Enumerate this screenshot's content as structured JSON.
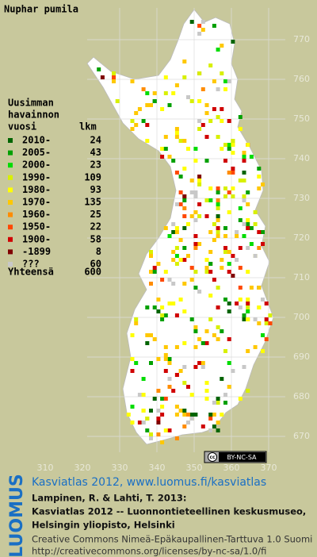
{
  "title": "Nuphar pumila",
  "legend": {
    "heading": [
      "Uusimman",
      "havainnon",
      "vuosi"
    ],
    "count_heading": "lkm",
    "items": [
      {
        "label": "2010-",
        "count": "24",
        "color": "#006400"
      },
      {
        "label": "2005-",
        "count": "43",
        "color": "#00a000"
      },
      {
        "label": "2000-",
        "count": "23",
        "color": "#00dc00"
      },
      {
        "label": "1990-",
        "count": "109",
        "color": "#d8f000"
      },
      {
        "label": "1980-",
        "count": "93",
        "color": "#ffff00"
      },
      {
        "label": "1970-",
        "count": "135",
        "color": "#ffc800"
      },
      {
        "label": "1960-",
        "count": "25",
        "color": "#ff8c00"
      },
      {
        "label": "1950-",
        "count": "22",
        "color": "#ff4800"
      },
      {
        "label": "1900-",
        "count": "58",
        "color": "#d00000"
      },
      {
        "label": "-1899",
        "count": "8",
        "color": "#800000"
      },
      {
        "label": "???",
        "count": "60",
        "color": "#c8c8c8"
      }
    ],
    "total": {
      "label": "Yhteensä",
      "count": "600"
    }
  },
  "grid": {
    "x_labels": [
      "310",
      "320",
      "330",
      "340",
      "350",
      "360",
      "370"
    ],
    "y_labels": [
      "770",
      "760",
      "750",
      "740",
      "730",
      "720",
      "710",
      "700",
      "690",
      "680",
      "670"
    ]
  },
  "badge": "BY-NC-SA",
  "footer": {
    "logo": "LUOMUS",
    "link": "Kasviatlas 2012, www.luomus.fi/kasviatlas",
    "citation": [
      "Lampinen, R. & Lahti, T. 2013:",
      "Kasviatlas 2012 -- Luonnontieteellinen keskusmuseo,",
      "Helsingin yliopisto, Helsinki"
    ],
    "license": [
      "Creative Commons Nimeä-Epäkaupallinen-Tarttuva 1.0 Suomi",
      "http://creativecommons.org/licenses/by-nc-sa/1.0/fi"
    ]
  }
}
